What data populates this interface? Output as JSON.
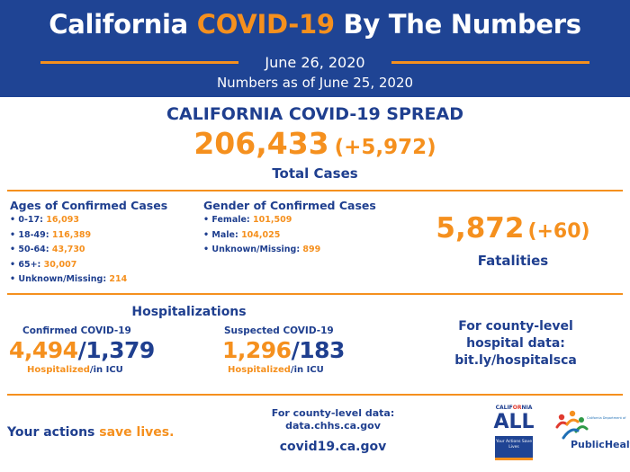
{
  "header": {
    "title_part1": "California ",
    "title_highlight": "COVID-19",
    "title_part2": " By The Numbers",
    "date": "June 26, 2020",
    "as_of": "Numbers as of June 25, 2020"
  },
  "spread": {
    "title": "CALIFORNIA COVID-19 SPREAD",
    "total_cases": "206,433",
    "total_delta": "(+5,972)",
    "total_label": "Total Cases"
  },
  "ages": {
    "heading": "Ages of Confirmed Cases",
    "items": [
      {
        "label": "• 0-17: ",
        "value": "16,093"
      },
      {
        "label": "• 18-49: ",
        "value": "116,389"
      },
      {
        "label": "• 50-64: ",
        "value": "43,730"
      },
      {
        "label": "• 65+: ",
        "value": "30,007"
      },
      {
        "label": "• Unknown/Missing: ",
        "value": "214"
      }
    ]
  },
  "gender": {
    "heading": "Gender of Confirmed Cases",
    "items": [
      {
        "label": "• Female: ",
        "value": "101,509"
      },
      {
        "label": "• Male: ",
        "value": "104,025"
      },
      {
        "label": "• Unknown/Missing: ",
        "value": "899"
      }
    ]
  },
  "fatalities": {
    "count": "5,872",
    "delta": "(+60)",
    "label": "Fatalities"
  },
  "hospitalizations": {
    "title": "Hospitalizations",
    "confirmed": {
      "label": "Confirmed COVID-19",
      "hospitalized": "4,494",
      "separator": "/",
      "icu": "1,379",
      "cap_hospitalized": "Hospitalized",
      "cap_icu": "/in ICU"
    },
    "suspected": {
      "label": "Suspected COVID-19",
      "hospitalized": "1,296",
      "separator": "/",
      "icu": "183",
      "cap_hospitalized": "Hospitalized",
      "cap_icu": "/in ICU"
    }
  },
  "county_hospital": {
    "line1": "For county-level",
    "line2": "hospital data:",
    "line3": "bit.ly/hospitalsca"
  },
  "footer": {
    "actions_prefix": "Your actions ",
    "actions_highlight": "save lives.",
    "county_data_line1": "For county-level data:",
    "county_data_line2": "data.chhs.ca.gov",
    "website": "covid19.ca.gov",
    "logo_all": {
      "ca_prefix": "CALIF",
      "ca_highlight": "OR",
      "ca_suffix": "NIA",
      "word": "ALL",
      "tagline": "Your Actions Save Lives"
    },
    "logo_cdph": {
      "dept": "California Department of",
      "name": "PublicHealth"
    }
  },
  "colors": {
    "navy": "#1f4494",
    "orange": "#f5901e"
  }
}
